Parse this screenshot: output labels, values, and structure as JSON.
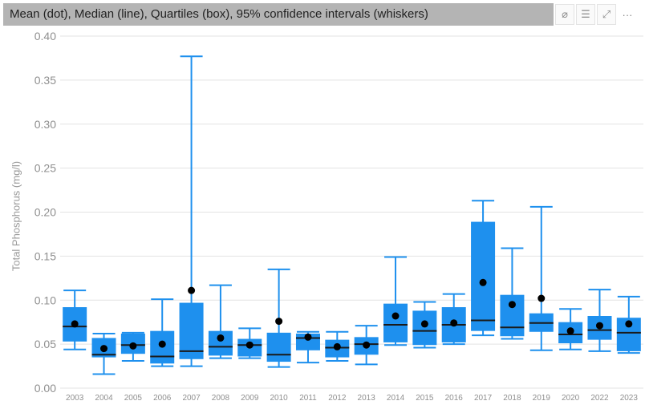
{
  "header": {
    "title": "Mean (dot), Median (line), Quartiles (box), 95% confidence intervals (whiskers)",
    "toolbar": [
      {
        "name": "eraser-icon",
        "glyph": "⌀"
      },
      {
        "name": "filter-icon",
        "glyph": "☰"
      },
      {
        "name": "focus-mode-icon",
        "glyph": "⤢"
      },
      {
        "name": "more-options-icon",
        "glyph": "···"
      }
    ]
  },
  "colors": {
    "box": "#1e90ee",
    "median": "#1a1a1a",
    "mean": "#000000",
    "grid": "#e3e3e3"
  },
  "chart_data": {
    "type": "box",
    "ylabel": "Total Phosphorus (mg/l)",
    "xlabel": "",
    "ylim": [
      0,
      0.4
    ],
    "yticks": [
      "0.00",
      "0.05",
      "0.10",
      "0.15",
      "0.20",
      "0.25",
      "0.30",
      "0.35",
      "0.40"
    ],
    "grid": true,
    "categories": [
      "2003",
      "2004",
      "2005",
      "2006",
      "2007",
      "2008",
      "2009",
      "2010",
      "2011",
      "2012",
      "2013",
      "2014",
      "2015",
      "2016",
      "2017",
      "2018",
      "2019",
      "2020",
      "2022",
      "2023"
    ],
    "boxes": [
      {
        "year": "2003",
        "whisker_low": 0.044,
        "q1": 0.053,
        "median": 0.07,
        "q3": 0.092,
        "whisker_high": 0.111,
        "mean": 0.073
      },
      {
        "year": "2004",
        "whisker_low": 0.016,
        "q1": 0.035,
        "median": 0.038,
        "q3": 0.057,
        "whisker_high": 0.062,
        "mean": 0.045
      },
      {
        "year": "2005",
        "whisker_low": 0.031,
        "q1": 0.039,
        "median": 0.049,
        "q3": 0.062,
        "whisker_high": 0.063,
        "mean": 0.048
      },
      {
        "year": "2006",
        "whisker_low": 0.025,
        "q1": 0.028,
        "median": 0.036,
        "q3": 0.065,
        "whisker_high": 0.101,
        "mean": 0.05
      },
      {
        "year": "2007",
        "whisker_low": 0.025,
        "q1": 0.033,
        "median": 0.042,
        "q3": 0.097,
        "whisker_high": 0.377,
        "mean": 0.111
      },
      {
        "year": "2008",
        "whisker_low": 0.034,
        "q1": 0.037,
        "median": 0.047,
        "q3": 0.065,
        "whisker_high": 0.117,
        "mean": 0.057
      },
      {
        "year": "2009",
        "whisker_low": 0.034,
        "q1": 0.036,
        "median": 0.049,
        "q3": 0.056,
        "whisker_high": 0.068,
        "mean": 0.049
      },
      {
        "year": "2010",
        "whisker_low": 0.024,
        "q1": 0.03,
        "median": 0.038,
        "q3": 0.063,
        "whisker_high": 0.135,
        "mean": 0.076
      },
      {
        "year": "2011",
        "whisker_low": 0.029,
        "q1": 0.043,
        "median": 0.057,
        "q3": 0.062,
        "whisker_high": 0.064,
        "mean": 0.058
      },
      {
        "year": "2012",
        "whisker_low": 0.031,
        "q1": 0.035,
        "median": 0.046,
        "q3": 0.055,
        "whisker_high": 0.064,
        "mean": 0.047
      },
      {
        "year": "2013",
        "whisker_low": 0.027,
        "q1": 0.038,
        "median": 0.05,
        "q3": 0.058,
        "whisker_high": 0.071,
        "mean": 0.049
      },
      {
        "year": "2014",
        "whisker_low": 0.049,
        "q1": 0.052,
        "median": 0.072,
        "q3": 0.096,
        "whisker_high": 0.149,
        "mean": 0.082
      },
      {
        "year": "2015",
        "whisker_low": 0.046,
        "q1": 0.049,
        "median": 0.065,
        "q3": 0.088,
        "whisker_high": 0.098,
        "mean": 0.073
      },
      {
        "year": "2016",
        "whisker_low": 0.05,
        "q1": 0.052,
        "median": 0.072,
        "q3": 0.092,
        "whisker_high": 0.107,
        "mean": 0.074
      },
      {
        "year": "2017",
        "whisker_low": 0.06,
        "q1": 0.065,
        "median": 0.077,
        "q3": 0.189,
        "whisker_high": 0.213,
        "mean": 0.12
      },
      {
        "year": "2018",
        "whisker_low": 0.056,
        "q1": 0.059,
        "median": 0.069,
        "q3": 0.106,
        "whisker_high": 0.159,
        "mean": 0.095
      },
      {
        "year": "2019",
        "whisker_low": 0.043,
        "q1": 0.064,
        "median": 0.074,
        "q3": 0.085,
        "whisker_high": 0.206,
        "mean": 0.102
      },
      {
        "year": "2020",
        "whisker_low": 0.044,
        "q1": 0.051,
        "median": 0.061,
        "q3": 0.075,
        "whisker_high": 0.09,
        "mean": 0.065
      },
      {
        "year": "2022",
        "whisker_low": 0.042,
        "q1": 0.055,
        "median": 0.066,
        "q3": 0.082,
        "whisker_high": 0.112,
        "mean": 0.071
      },
      {
        "year": "2023",
        "whisker_low": 0.04,
        "q1": 0.042,
        "median": 0.063,
        "q3": 0.08,
        "whisker_high": 0.104,
        "mean": 0.073
      }
    ]
  }
}
